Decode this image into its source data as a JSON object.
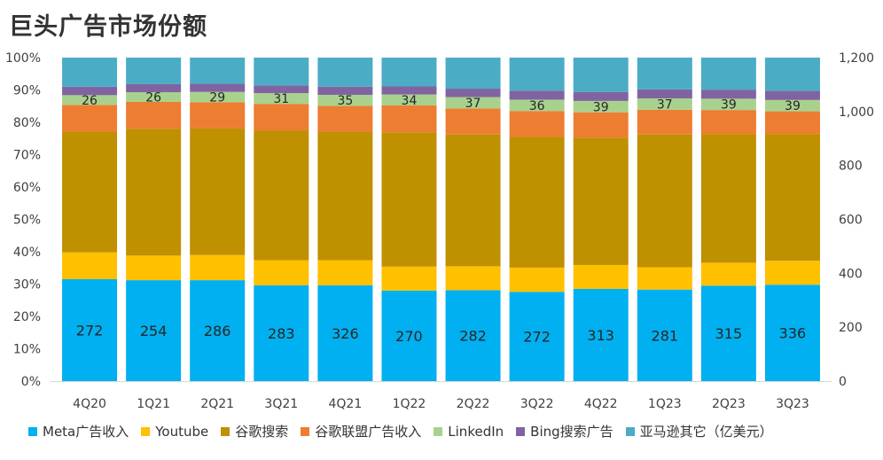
{
  "title": "巨头广告市场份额",
  "legend_unit": "（亿美元）",
  "chart_data": {
    "type": "bar",
    "stacked": true,
    "categories": [
      "4Q20",
      "1Q21",
      "2Q21",
      "3Q21",
      "4Q21",
      "1Q22",
      "2Q22",
      "3Q22",
      "4Q22",
      "1Q23",
      "2Q23",
      "3Q23"
    ],
    "y_left_ticks": [
      "0%",
      "10%",
      "20%",
      "30%",
      "40%",
      "50%",
      "60%",
      "70%",
      "80%",
      "90%",
      "100%"
    ],
    "y_right_ticks": [
      "0",
      "200",
      "400",
      "600",
      "800",
      "1,000",
      "1,200"
    ],
    "ylim_left": [
      0,
      100
    ],
    "ylim_right": [
      0,
      1200
    ],
    "legend_position": "bottom",
    "series": [
      {
        "name": "Meta广告收入",
        "color": "#00B0F0",
        "share": [
          31.5,
          31.2,
          31.2,
          29.6,
          29.6,
          28.0,
          28.1,
          27.6,
          28.5,
          28.3,
          29.5,
          29.8
        ],
        "labels": [
          "272",
          "254",
          "286",
          "283",
          "326",
          "270",
          "282",
          "272",
          "313",
          "281",
          "315",
          "336"
        ]
      },
      {
        "name": "Youtube",
        "color": "#FFC000",
        "share": [
          8.3,
          7.6,
          7.8,
          7.8,
          7.8,
          7.4,
          7.4,
          7.5,
          7.4,
          6.9,
          7.1,
          7.4
        ]
      },
      {
        "name": "谷歌搜索",
        "color": "#BF9000",
        "share": [
          37.3,
          39.2,
          39.1,
          40.0,
          39.6,
          41.5,
          40.7,
          40.4,
          39.4,
          41.0,
          39.8,
          39.2
        ]
      },
      {
        "name": "谷歌联盟广告收入",
        "color": "#ED7D31",
        "share": [
          8.3,
          8.3,
          8.1,
          8.3,
          8.1,
          8.3,
          8.1,
          8.0,
          7.8,
          7.7,
          7.4,
          7.0
        ]
      },
      {
        "name": "LinkedIn",
        "color": "#A9D18E",
        "share": [
          3.0,
          3.0,
          3.2,
          3.3,
          3.4,
          3.4,
          3.5,
          3.5,
          3.5,
          3.5,
          3.5,
          3.5
        ],
        "labels": [
          "26",
          "26",
          "29",
          "31",
          "35",
          "34",
          "37",
          "36",
          "39",
          "37",
          "39",
          "39"
        ]
      },
      {
        "name": "Bing搜索广告",
        "color": "#8064A2",
        "share": [
          2.6,
          2.5,
          2.5,
          2.4,
          2.5,
          2.5,
          2.6,
          2.8,
          2.8,
          2.8,
          2.8,
          2.8
        ]
      },
      {
        "name": "亚马逊其它",
        "color": "#4BACC6",
        "share": [
          9.0,
          8.2,
          8.1,
          8.6,
          9.0,
          8.9,
          9.6,
          10.2,
          10.6,
          9.8,
          9.9,
          10.3
        ]
      }
    ]
  }
}
